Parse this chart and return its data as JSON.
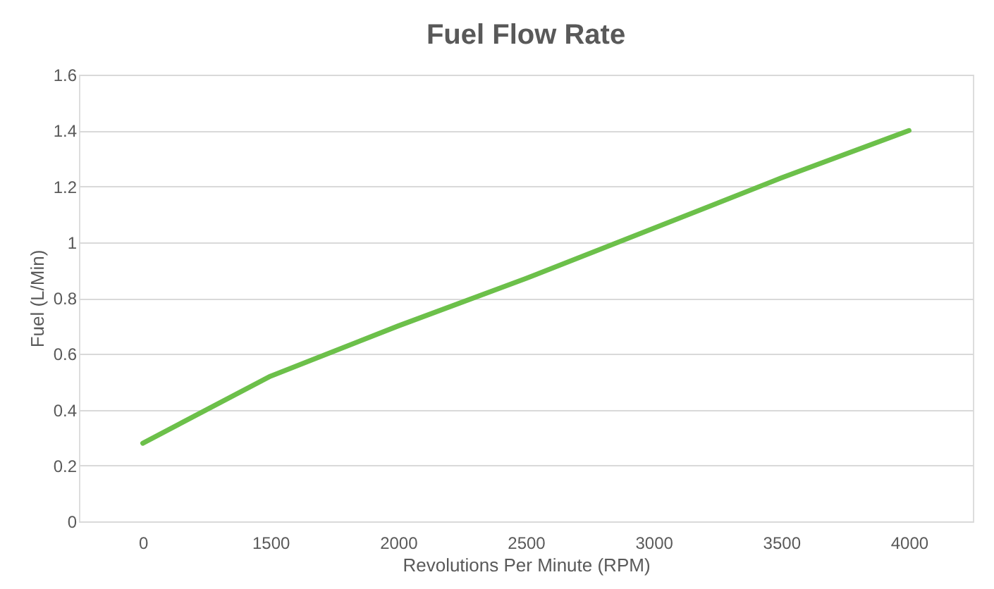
{
  "chart_data": {
    "type": "line",
    "title": "Fuel Flow Rate",
    "xlabel": "Revolutions Per Minute (RPM)",
    "ylabel": "Fuel (L/Min)",
    "categories": [
      "0",
      "1500",
      "2000",
      "2500",
      "3000",
      "3500",
      "4000"
    ],
    "series": [
      {
        "color": "#6cc04a",
        "values": [
          0.28,
          0.52,
          0.7,
          0.87,
          1.05,
          1.23,
          1.4
        ]
      }
    ],
    "ylim": [
      0,
      1.6
    ],
    "yticks": [
      0,
      0.2,
      0.4,
      0.6,
      0.8,
      1,
      1.2,
      1.4,
      1.6
    ],
    "grid": "y",
    "marker": "none",
    "line_style": "solid"
  }
}
